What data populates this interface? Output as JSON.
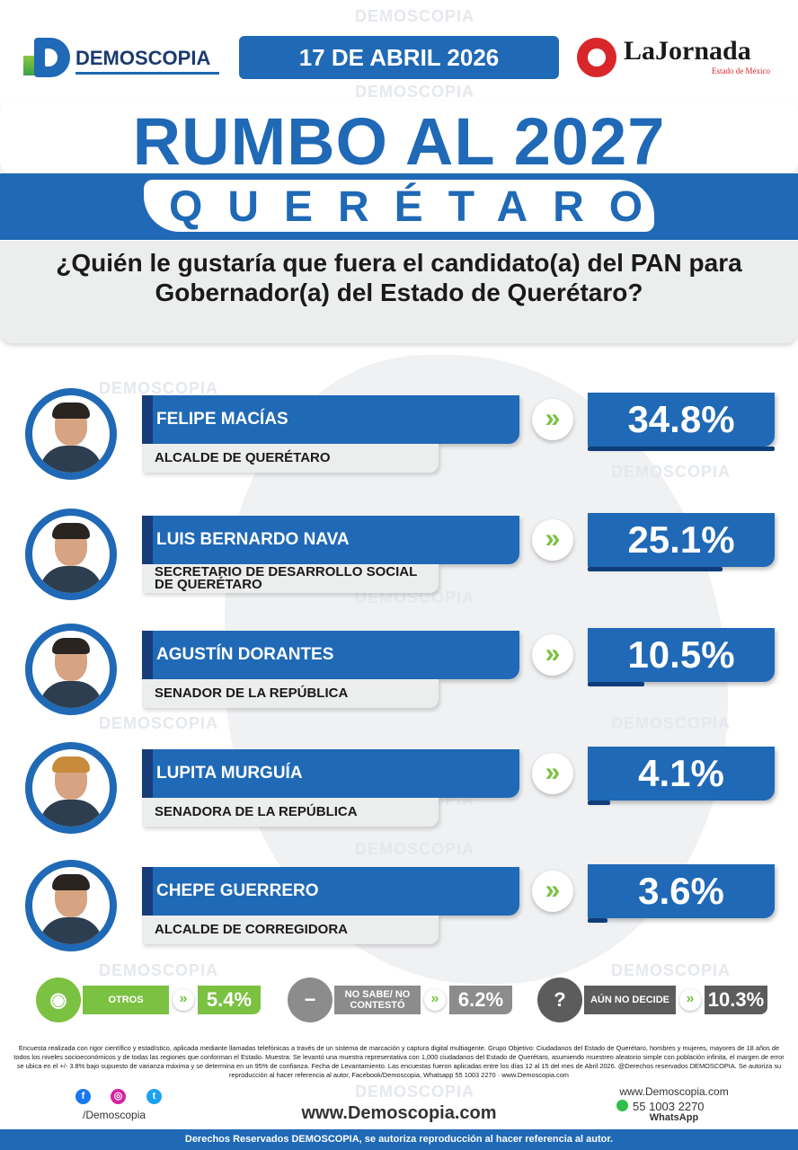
{
  "header": {
    "brand": "DEMOSCOPIA",
    "date": "17 DE ABRIL 2026",
    "partner": "LaJornada",
    "partner_sub": "Estado de México"
  },
  "title": {
    "main": "RUMBO AL 2027",
    "state": "QUERÉTARO",
    "question": "¿Quién le gustaría que fuera el candidato(a) del PAN para Gobernador(a) del Estado de Querétaro?"
  },
  "watermark": "DEMOSCOPIA",
  "chart_data": {
    "type": "bar",
    "title": "¿Quién le gustaría que fuera el candidato(a) del PAN para Gobernador(a) del Estado de Querétaro?",
    "unit": "%",
    "categories": [
      "FELIPE MACÍAS",
      "LUIS BERNARDO NAVA",
      "AGUSTÍN DORANTES",
      "LUPITA MURGUÍA",
      "CHEPE GUERRERO",
      "OTROS",
      "NO SABE/ NO CONTESTÓ",
      "AÚN NO DECIDE"
    ],
    "values": [
      34.8,
      25.1,
      10.5,
      4.1,
      3.6,
      5.4,
      6.2,
      10.3
    ],
    "candidates": [
      {
        "name": "FELIPE MACÍAS",
        "role": "ALCALDE DE QUERÉTARO",
        "value": 34.8,
        "label": "34.8%"
      },
      {
        "name": "LUIS BERNARDO NAVA",
        "role": "SECRETARIO DE DESARROLLO SOCIAL DE QUERÉTARO",
        "value": 25.1,
        "label": "25.1%"
      },
      {
        "name": "AGUSTÍN DORANTES",
        "role": "SENADOR DE LA REPÚBLICA",
        "value": 10.5,
        "label": "10.5%"
      },
      {
        "name": "LUPITA MURGUÍA",
        "role": "SENADORA DE LA REPÚBLICA",
        "value": 4.1,
        "label": "4.1%"
      },
      {
        "name": "CHEPE GUERRERO",
        "role": "ALCALDE DE CORREGIDORA",
        "value": 3.6,
        "label": "3.6%"
      }
    ],
    "others": [
      {
        "label": "OTROS",
        "value": 5.4,
        "display": "5.4%",
        "icon": "person-icon",
        "color": "#7bc142"
      },
      {
        "label": "NO SABE/ NO CONTESTÓ",
        "value": 6.2,
        "display": "6.2%",
        "icon": "minus-icon",
        "color": "#8c8c8c"
      },
      {
        "label": "AÚN NO DECIDE",
        "value": 10.3,
        "display": "10.3%",
        "icon": "question-icon",
        "color": "#5c5c5c"
      }
    ]
  },
  "colors": {
    "primary": "#1f69b6",
    "dark_blue": "#173c7a",
    "green": "#7bc142",
    "gray": "#8c8c8c",
    "dark_gray": "#5c5c5c",
    "red": "#d9262b"
  },
  "methodology": "Encuesta realizada con rigor científico y estadístico, aplicada mediante llamadas telefónicas a través de un sistema de marcación y captura digital multiagente. Grupo Objetivo: Ciudadanos del Estado de Querétaro, hombres y mujeres, mayores de 18 años de todos los niveles socioeconómicos y de todas las regiones que conforman el Estado. Muestra: Se levantó una muestra representativa con 1,000 ciudadanos del Estado de Querétaro, asumiendo muestreo aleatorio simple con población infinita, el margen de error se ubica en el +/- 3.8% bajo supuesto de varianza máxima y se determina en un 95% de confianza. Fecha de Levantamiento. Las encuestas fueron aplicadas entre los días 12 al 15 del mes de Abril 2026. @Derechos reservados DEMOSCOPIA. Se autoriza su reproducción al hacer referencia al autor, Facebook/Demoscopia, Whatsapp 55 1003 2270 · www.Demoscopia.com",
  "social": {
    "handle": "/Demoscopia",
    "icons": [
      "facebook-icon",
      "instagram-icon",
      "twitter-icon"
    ]
  },
  "website": "www.Demoscopia.com",
  "contact": {
    "site": "www.Demoscopia.com",
    "phone": "55 1003 2270",
    "label": "WhatsApp"
  },
  "footer": "Derechos Reservados DEMOSCOPIA, se autoriza reproducción al hacer referencia al autor."
}
